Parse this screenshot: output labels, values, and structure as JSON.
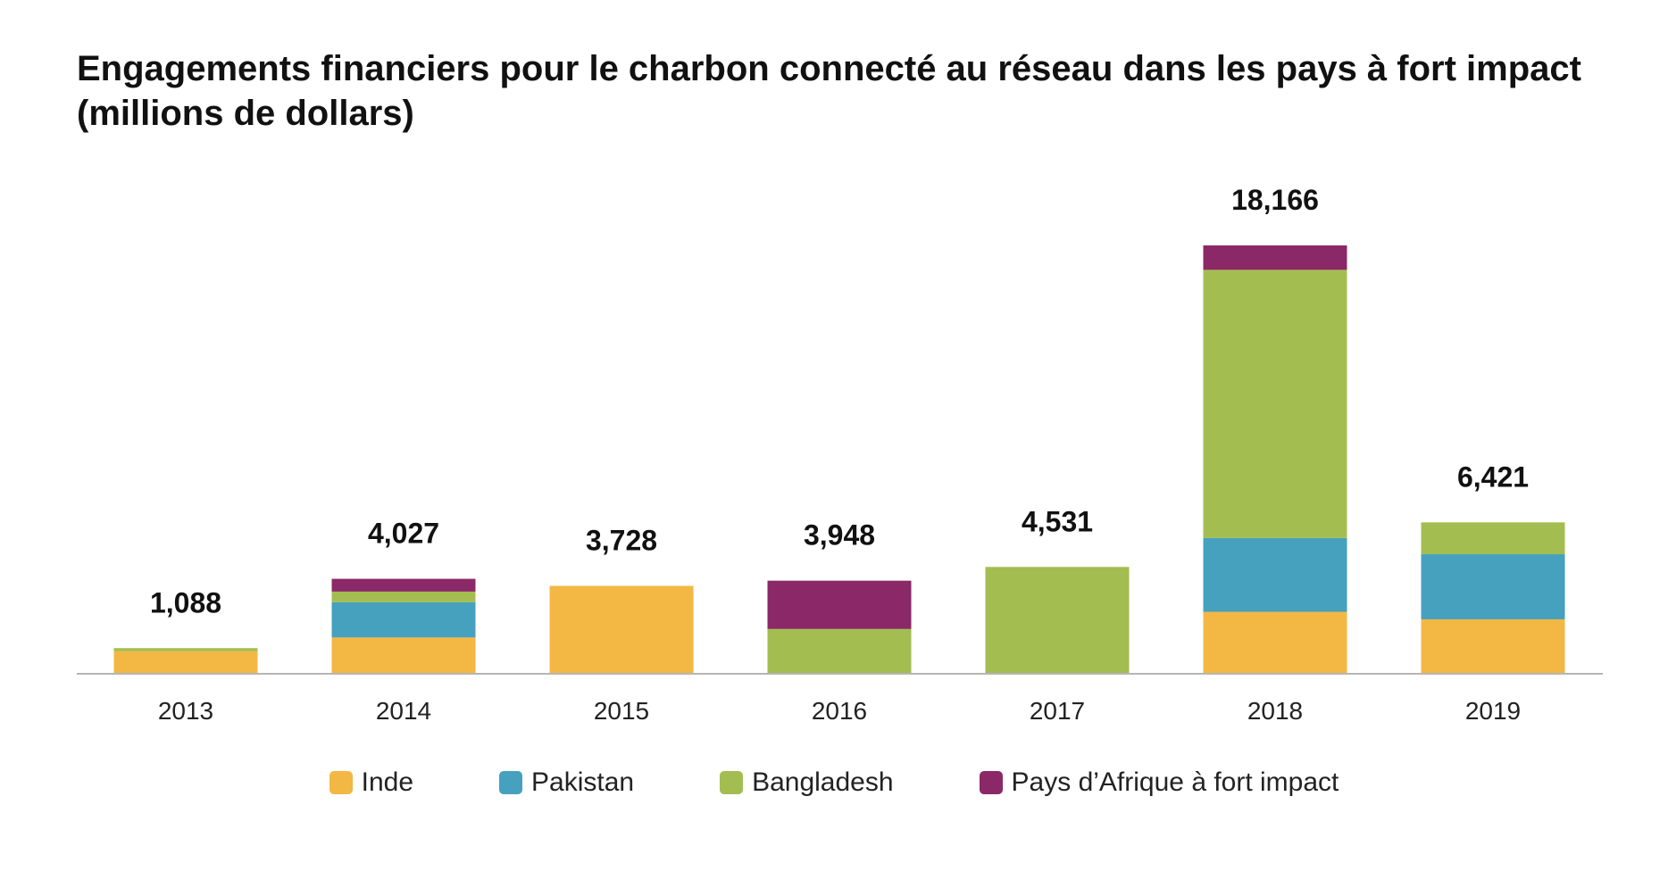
{
  "chart_data": {
    "type": "bar",
    "stacked": true,
    "title": "Engagements financiers pour le charbon connecté au réseau dans les pays à fort impact (millions de dollars)",
    "categories": [
      "2013",
      "2014",
      "2015",
      "2016",
      "2017",
      "2018",
      "2019"
    ],
    "totals": [
      "1,088",
      "4,027",
      "3,728",
      "3,948",
      "4,531",
      "18,166",
      "6,421"
    ],
    "series": [
      {
        "name": "Inde",
        "color": "#F3B744",
        "values": [
          958,
          1540,
          3728,
          0,
          0,
          2630,
          2310
        ]
      },
      {
        "name": "Pakistan",
        "color": "#45A1BD",
        "values": [
          0,
          1495,
          0,
          0,
          0,
          3130,
          2760
        ]
      },
      {
        "name": "Bangladesh",
        "color": "#A3BD51",
        "values": [
          130,
          450,
          0,
          1900,
          4531,
          11370,
          1351
        ]
      },
      {
        "name": "Pays d’Afrique à fort impact",
        "color": "#8B2867",
        "values": [
          0,
          542,
          0,
          2048,
          0,
          1036,
          0
        ]
      }
    ],
    "ylim": [
      0,
      18166
    ],
    "grid": false,
    "legend_position": "bottom"
  }
}
